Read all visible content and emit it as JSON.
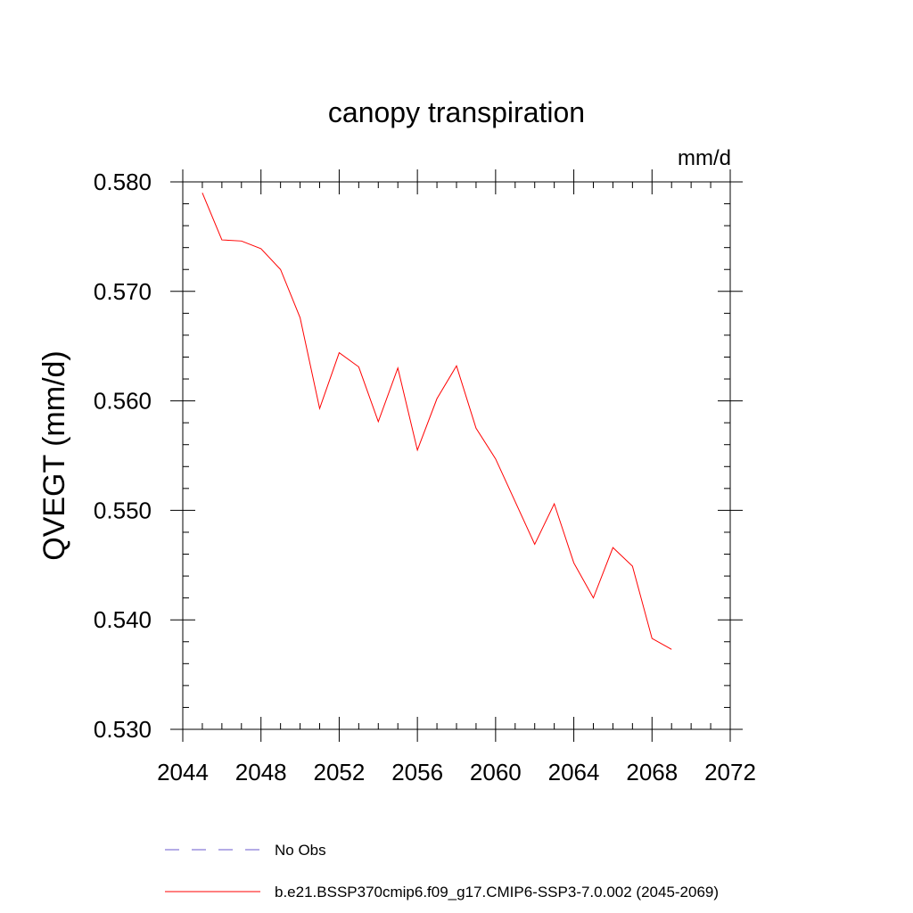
{
  "chart_data": {
    "type": "line",
    "title": "canopy transpiration",
    "units_label": "mm/d",
    "ylabel": "QVEGT  (mm/d)",
    "xlabel": "",
    "xlim": [
      2044,
      2072
    ],
    "ylim": [
      0.53,
      0.58
    ],
    "xticks": [
      2044,
      2048,
      2052,
      2056,
      2060,
      2064,
      2068,
      2072
    ],
    "xtick_labels": [
      "2044",
      "2048",
      "2052",
      "2056",
      "2060",
      "2064",
      "2068",
      "2072"
    ],
    "yticks": [
      0.53,
      0.54,
      0.55,
      0.56,
      0.57,
      0.58
    ],
    "ytick_labels": [
      "0.530",
      "0.540",
      "0.550",
      "0.560",
      "0.570",
      "0.580"
    ],
    "grid": false,
    "legend_position": "bottom",
    "series": [
      {
        "name": "b.e21.BSSP370cmip6.f09_g17.CMIP6-SSP3-7.0.002 (2045-2069)",
        "color": "#ff0000",
        "style": "solid",
        "x": [
          2045,
          2046,
          2047,
          2048,
          2049,
          2050,
          2051,
          2052,
          2053,
          2054,
          2055,
          2056,
          2057,
          2058,
          2059,
          2060,
          2061,
          2062,
          2063,
          2064,
          2065,
          2066,
          2067,
          2068,
          2069
        ],
        "y": [
          0.579,
          0.5747,
          0.5746,
          0.5739,
          0.572,
          0.5676,
          0.5593,
          0.5644,
          0.5631,
          0.5581,
          0.563,
          0.5555,
          0.5602,
          0.5632,
          0.5575,
          0.5547,
          0.5508,
          0.5469,
          0.5506,
          0.5452,
          0.542,
          0.5466,
          0.5449,
          0.5383,
          0.5373
        ]
      }
    ],
    "legend": [
      {
        "label": "No Obs",
        "color": "#6a5acd",
        "style": "dashed"
      },
      {
        "label": "b.e21.BSSP370cmip6.f09_g17.CMIP6-SSP3-7.0.002 (2045-2069)",
        "color": "#ff0000",
        "style": "solid"
      }
    ]
  }
}
